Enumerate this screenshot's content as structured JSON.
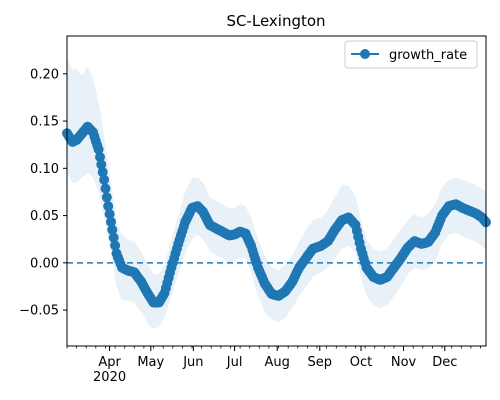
{
  "chart_data": {
    "type": "line",
    "title": "SC-Lexington",
    "xlabel": "",
    "ylabel": "",
    "xlim": [
      "2020-03-01",
      "2020-12-31"
    ],
    "ylim": [
      -0.088,
      0.24
    ],
    "grid": false,
    "legend": {
      "position": "top-right",
      "entries": [
        "growth_rate"
      ]
    },
    "x_ticks": [
      {
        "date": "2020-04-01",
        "label": "Apr",
        "sublabel": "2020"
      },
      {
        "date": "2020-05-01",
        "label": "May"
      },
      {
        "date": "2020-06-01",
        "label": "Jun"
      },
      {
        "date": "2020-07-01",
        "label": "Jul"
      },
      {
        "date": "2020-08-01",
        "label": "Aug"
      },
      {
        "date": "2020-09-01",
        "label": "Sep"
      },
      {
        "date": "2020-10-01",
        "label": "Oct"
      },
      {
        "date": "2020-11-01",
        "label": "Nov"
      },
      {
        "date": "2020-12-01",
        "label": "Dec"
      }
    ],
    "y_ticks": [
      {
        "value": 0.2,
        "label": "0.20"
      },
      {
        "value": 0.15,
        "label": "0.15"
      },
      {
        "value": 0.1,
        "label": "0.10"
      },
      {
        "value": 0.05,
        "label": "0.05"
      },
      {
        "value": 0.0,
        "label": "0.00"
      },
      {
        "value": -0.05,
        "label": "−0.05"
      }
    ],
    "reference_line": {
      "y": 0.0,
      "style": "dashed"
    },
    "series": [
      {
        "name": "growth_rate",
        "color": "#1f77b4",
        "band_color": "#1f77b4",
        "points": [
          [
            "2020-03-01",
            0.137,
            0.095,
            0.215
          ],
          [
            "2020-03-05",
            0.128,
            0.085,
            0.205
          ],
          [
            "2020-03-08",
            0.13,
            0.085,
            0.205
          ],
          [
            "2020-03-12",
            0.137,
            0.09,
            0.198
          ],
          [
            "2020-03-16",
            0.144,
            0.095,
            0.208
          ],
          [
            "2020-03-20",
            0.138,
            0.09,
            0.195
          ],
          [
            "2020-03-24",
            0.12,
            0.075,
            0.17
          ],
          [
            "2020-03-28",
            0.088,
            0.05,
            0.135
          ],
          [
            "2020-03-31",
            0.06,
            0.025,
            0.105
          ],
          [
            "2020-04-03",
            0.035,
            0.005,
            0.075
          ],
          [
            "2020-04-06",
            0.01,
            -0.025,
            0.045
          ],
          [
            "2020-04-10",
            -0.005,
            -0.04,
            0.03
          ],
          [
            "2020-04-14",
            -0.008,
            -0.04,
            0.025
          ],
          [
            "2020-04-19",
            -0.01,
            -0.042,
            0.022
          ],
          [
            "2020-04-24",
            -0.02,
            -0.052,
            0.012
          ],
          [
            "2020-04-29",
            -0.033,
            -0.065,
            -0.002
          ],
          [
            "2020-05-03",
            -0.042,
            -0.07,
            -0.012
          ],
          [
            "2020-05-07",
            -0.042,
            -0.068,
            -0.012
          ],
          [
            "2020-05-11",
            -0.032,
            -0.058,
            -0.002
          ],
          [
            "2020-05-16",
            -0.005,
            -0.035,
            0.025
          ],
          [
            "2020-05-21",
            0.02,
            -0.012,
            0.05
          ],
          [
            "2020-05-26",
            0.043,
            0.01,
            0.075
          ],
          [
            "2020-05-31",
            0.058,
            0.025,
            0.09
          ],
          [
            "2020-06-04",
            0.06,
            0.03,
            0.09
          ],
          [
            "2020-06-08",
            0.054,
            0.025,
            0.085
          ],
          [
            "2020-06-13",
            0.04,
            0.012,
            0.07
          ],
          [
            "2020-06-18",
            0.036,
            0.008,
            0.065
          ],
          [
            "2020-06-22",
            0.033,
            0.005,
            0.062
          ],
          [
            "2020-06-27",
            0.029,
            0.0,
            0.058
          ],
          [
            "2020-07-01",
            0.03,
            0.002,
            0.058
          ],
          [
            "2020-07-05",
            0.033,
            0.005,
            0.062
          ],
          [
            "2020-07-09",
            0.031,
            0.005,
            0.06
          ],
          [
            "2020-07-13",
            0.018,
            -0.01,
            0.048
          ],
          [
            "2020-07-18",
            -0.005,
            -0.035,
            0.025
          ],
          [
            "2020-07-23",
            -0.022,
            -0.052,
            0.008
          ],
          [
            "2020-07-28",
            -0.033,
            -0.06,
            -0.005
          ],
          [
            "2020-08-02",
            -0.035,
            -0.063,
            -0.008
          ],
          [
            "2020-08-07",
            -0.03,
            -0.058,
            -0.002
          ],
          [
            "2020-08-12",
            -0.02,
            -0.048,
            0.008
          ],
          [
            "2020-08-17",
            -0.005,
            -0.035,
            0.022
          ],
          [
            "2020-08-22",
            0.005,
            -0.025,
            0.035
          ],
          [
            "2020-08-27",
            0.015,
            -0.015,
            0.045
          ],
          [
            "2020-09-02",
            0.018,
            -0.01,
            0.048
          ],
          [
            "2020-09-07",
            0.023,
            -0.005,
            0.055
          ],
          [
            "2020-09-12",
            0.035,
            0.005,
            0.07
          ],
          [
            "2020-09-17",
            0.045,
            0.015,
            0.082
          ],
          [
            "2020-09-22",
            0.048,
            0.018,
            0.082
          ],
          [
            "2020-09-27",
            0.04,
            0.01,
            0.07
          ],
          [
            "2020-10-01",
            0.015,
            -0.015,
            0.045
          ],
          [
            "2020-10-05",
            -0.005,
            -0.035,
            0.025
          ],
          [
            "2020-10-10",
            -0.015,
            -0.045,
            0.015
          ],
          [
            "2020-10-15",
            -0.018,
            -0.048,
            0.012
          ],
          [
            "2020-10-20",
            -0.015,
            -0.045,
            0.015
          ],
          [
            "2020-10-25",
            -0.005,
            -0.035,
            0.025
          ],
          [
            "2020-10-30",
            0.005,
            -0.025,
            0.035
          ],
          [
            "2020-11-04",
            0.016,
            -0.012,
            0.045
          ],
          [
            "2020-11-09",
            0.023,
            -0.005,
            0.052
          ],
          [
            "2020-11-14",
            0.02,
            -0.008,
            0.048
          ],
          [
            "2020-11-19",
            0.022,
            -0.006,
            0.052
          ],
          [
            "2020-11-24",
            0.032,
            0.002,
            0.062
          ],
          [
            "2020-11-29",
            0.05,
            0.02,
            0.08
          ],
          [
            "2020-12-04",
            0.06,
            0.03,
            0.088
          ],
          [
            "2020-12-09",
            0.062,
            0.032,
            0.09
          ],
          [
            "2020-12-14",
            0.058,
            0.028,
            0.088
          ],
          [
            "2020-12-19",
            0.055,
            0.025,
            0.085
          ],
          [
            "2020-12-24",
            0.052,
            0.022,
            0.082
          ],
          [
            "2020-12-28",
            0.048,
            0.018,
            0.078
          ],
          [
            "2020-12-31",
            0.043,
            0.013,
            0.075
          ]
        ]
      }
    ]
  }
}
